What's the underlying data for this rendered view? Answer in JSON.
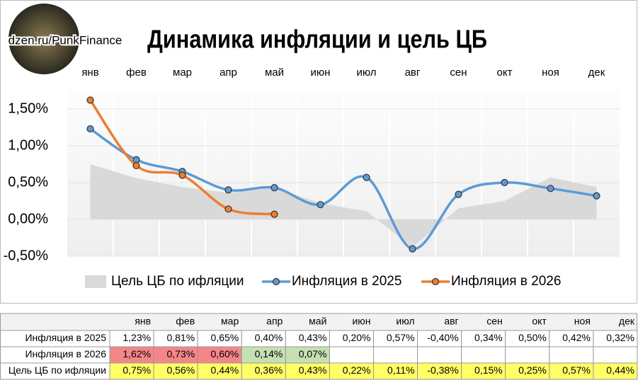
{
  "chart_data": {
    "type": "line",
    "title": "Динамика инфляции и цель ЦБ",
    "subtitle": "dzen.ru/PunkFinance",
    "categories": [
      "янв",
      "фев",
      "мар",
      "апр",
      "май",
      "июн",
      "июл",
      "авг",
      "сен",
      "окт",
      "ноя",
      "дек"
    ],
    "ylim": [
      -0.5,
      1.75
    ],
    "yticks": [
      {
        "value": -0.5,
        "label": "-0,50%"
      },
      {
        "value": 0,
        "label": "0,00%"
      },
      {
        "value": 0.5,
        "label": "0,50%"
      },
      {
        "value": 1,
        "label": "1,00%"
      },
      {
        "value": 1.5,
        "label": "1,50%"
      }
    ],
    "grid": true,
    "legend": "bottom",
    "series": [
      {
        "name": "Цель ЦБ по ифляции",
        "kind": "area",
        "color": "#d9d9d9",
        "row_color": "#ffff66",
        "values": [
          0.75,
          0.56,
          0.44,
          0.36,
          0.43,
          0.22,
          0.11,
          -0.38,
          0.15,
          0.25,
          0.57,
          0.44
        ],
        "value_labels": [
          "0,75%",
          "0,56%",
          "0,44%",
          "0,36%",
          "0,43%",
          "0,22%",
          "0,11%",
          "-0,38%",
          "0,15%",
          "0,25%",
          "0,57%",
          "0,44%"
        ]
      },
      {
        "name": "Инфляция в 2025",
        "kind": "line",
        "color": "#5b9bd5",
        "row_color": "#ffffff",
        "values": [
          1.23,
          0.81,
          0.65,
          0.4,
          0.43,
          0.2,
          0.57,
          -0.4,
          0.34,
          0.5,
          0.42,
          0.32
        ],
        "value_labels": [
          "1,23%",
          "0,81%",
          "0,65%",
          "0,40%",
          "0,43%",
          "0,20%",
          "0,57%",
          "-0,40%",
          "0,34%",
          "0,50%",
          "0,42%",
          "0,32%"
        ]
      },
      {
        "name": "Инфляция в 2026",
        "kind": "line",
        "color": "#ed7d31",
        "cell_colors": [
          "#f4868a",
          "#f4868a",
          "#f4868a",
          "#c6e0b4",
          "#c6e0b4",
          null,
          null,
          null,
          null,
          null,
          null,
          null
        ],
        "values": [
          1.62,
          0.73,
          0.6,
          0.14,
          0.07,
          null,
          null,
          null,
          null,
          null,
          null,
          null
        ],
        "value_labels": [
          "1,62%",
          "0,73%",
          "0,60%",
          "0,14%",
          "0,07%",
          null,
          null,
          null,
          null,
          null,
          null,
          null
        ]
      }
    ],
    "table_rows": [
      1,
      2,
      0
    ]
  }
}
